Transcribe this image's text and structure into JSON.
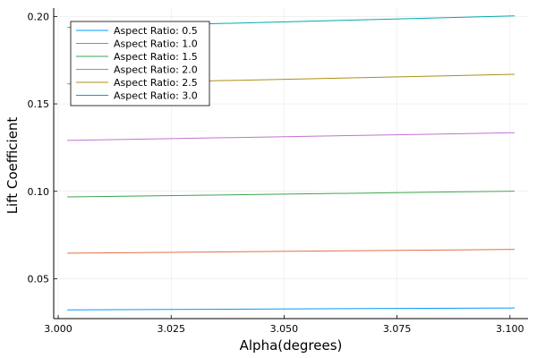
{
  "chart_data": {
    "type": "line",
    "title": "",
    "xlabel": "Alpha(degrees)",
    "ylabel": "Lift Coefficient",
    "xlim": [
      2.999,
      3.104
    ],
    "ylim": [
      0.0272,
      0.2048
    ],
    "xticks": [
      3.0,
      3.025,
      3.05,
      3.075,
      3.1
    ],
    "xtick_labels": [
      "3.000",
      "3.025",
      "3.050",
      "3.075",
      "3.100"
    ],
    "yticks": [
      0.05,
      0.1,
      0.15,
      0.2
    ],
    "ytick_labels": [
      "0.05",
      "0.10",
      "0.15",
      "0.20"
    ],
    "grid": true,
    "legend_position": "top-left",
    "x": [
      3.002,
      3.101
    ],
    "series": [
      {
        "name": "Aspect Ratio: 0.5",
        "color": "#009AFA",
        "values": [
          0.0322,
          0.0333
        ]
      },
      {
        "name": "Aspect Ratio: 1.0",
        "color": "#E36F47",
        "values": [
          0.0646,
          0.0668
        ]
      },
      {
        "name": "Aspect Ratio: 1.5",
        "color": "#3EA44E",
        "values": [
          0.0968,
          0.1001
        ]
      },
      {
        "name": "Aspect Ratio: 2.0",
        "color": "#C371D2",
        "values": [
          0.1291,
          0.1335
        ]
      },
      {
        "name": "Aspect Ratio: 2.5",
        "color": "#AC8E18",
        "values": [
          0.1614,
          0.1669
        ]
      },
      {
        "name": "Aspect Ratio: 3.0",
        "color": "#00AAAE",
        "values": [
          0.1937,
          0.2003
        ]
      }
    ]
  }
}
